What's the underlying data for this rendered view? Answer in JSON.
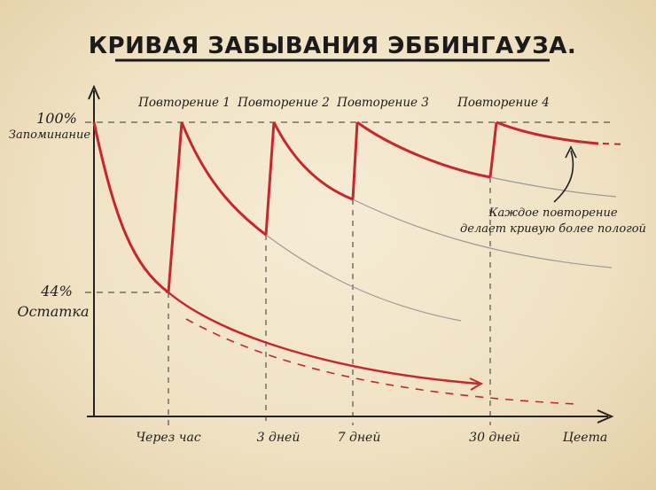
{
  "chart_data": {
    "type": "line",
    "title": "КРИВАЯ ЗАБЫВАНИЯ ЭББИНГАУЗА.",
    "xlabel": "Цеета",
    "y_ticks": [
      {
        "value": 100,
        "label": "100%",
        "sublabel": "Запоминание"
      },
      {
        "value": 44,
        "label": "44%",
        "sublabel": "Остатка"
      }
    ],
    "x_ticks": [
      "Через час",
      "3 дней",
      "7 дней",
      "30 дней"
    ],
    "repetitions": [
      "Повторение 1",
      "Повторение 2",
      "Повторение 3",
      "Повторение 4"
    ],
    "annotation": [
      "Каждое повторение",
      "делает кривую более пологой"
    ],
    "colors": {
      "curve": "#c8262c",
      "axis": "#222222",
      "faded": "#9a9a9a"
    }
  }
}
